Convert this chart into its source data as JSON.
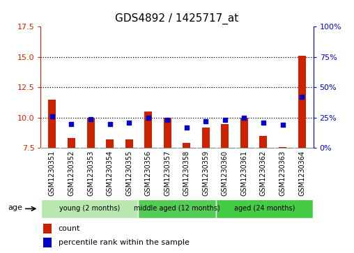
{
  "title": "GDS4892 / 1425717_at",
  "samples": [
    "GSM1230351",
    "GSM1230352",
    "GSM1230353",
    "GSM1230354",
    "GSM1230355",
    "GSM1230356",
    "GSM1230357",
    "GSM1230358",
    "GSM1230359",
    "GSM1230360",
    "GSM1230361",
    "GSM1230362",
    "GSM1230363",
    "GSM1230364"
  ],
  "count_values": [
    11.5,
    8.3,
    10.0,
    8.2,
    8.2,
    10.5,
    10.0,
    7.9,
    9.2,
    9.5,
    10.0,
    8.5,
    7.6,
    15.1
  ],
  "percentile_values": [
    26,
    20,
    24,
    20,
    21,
    25,
    23,
    17,
    22,
    23,
    25,
    21,
    19,
    42
  ],
  "ylim_left": [
    7.5,
    17.5
  ],
  "ylim_right": [
    0,
    100
  ],
  "yticks_left": [
    7.5,
    10.0,
    12.5,
    15.0,
    17.5
  ],
  "yticks_right": [
    0,
    25,
    50,
    75,
    100
  ],
  "ytick_labels_right": [
    "0%",
    "25%",
    "50%",
    "75%",
    "100%"
  ],
  "bar_color": "#cc2200",
  "dot_color": "#0000cc",
  "baseline": 7.5,
  "grid_lines": [
    10.0,
    12.5,
    15.0
  ],
  "groups": [
    {
      "label": "young (2 months)",
      "start": 0,
      "end": 5,
      "color": "#b8e8b0"
    },
    {
      "label": "middle aged (12 months)",
      "start": 5,
      "end": 9,
      "color": "#55cc55"
    },
    {
      "label": "aged (24 months)",
      "start": 9,
      "end": 14,
      "color": "#44cc44"
    }
  ],
  "legend_count_label": "count",
  "legend_percentile_label": "percentile rank within the sample",
  "age_label": "age",
  "bar_width": 0.4,
  "dot_size": 18,
  "tick_bg_color": "#d4d4d4",
  "border_color": "#888888"
}
